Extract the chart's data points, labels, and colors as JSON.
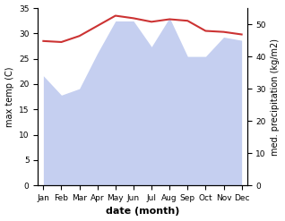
{
  "months": [
    "Jan",
    "Feb",
    "Mar",
    "Apr",
    "May",
    "Jun",
    "Jul",
    "Aug",
    "Sep",
    "Oct",
    "Nov",
    "Dec"
  ],
  "month_positions": [
    0,
    1,
    2,
    3,
    4,
    5,
    6,
    7,
    8,
    9,
    10,
    11
  ],
  "temperature": [
    28.5,
    28.3,
    29.5,
    31.5,
    33.5,
    33.0,
    32.3,
    32.8,
    32.5,
    30.5,
    30.3,
    29.8
  ],
  "precipitation": [
    34,
    28,
    30,
    41,
    51,
    51,
    43,
    52,
    40,
    40,
    46,
    45
  ],
  "temp_ylim": [
    0,
    35
  ],
  "precip_ylim": [
    0,
    55
  ],
  "precip_right_ticks": [
    0,
    10,
    20,
    30,
    40,
    50
  ],
  "temp_left_ticks": [
    0,
    5,
    10,
    15,
    20,
    25,
    30,
    35
  ],
  "temp_color": "#cc3333",
  "precip_fill_color": "#c5cff0",
  "xlabel": "date (month)",
  "ylabel_left": "max temp (C)",
  "ylabel_right": "med. precipitation (kg/m2)",
  "bg_color": "#ffffff"
}
